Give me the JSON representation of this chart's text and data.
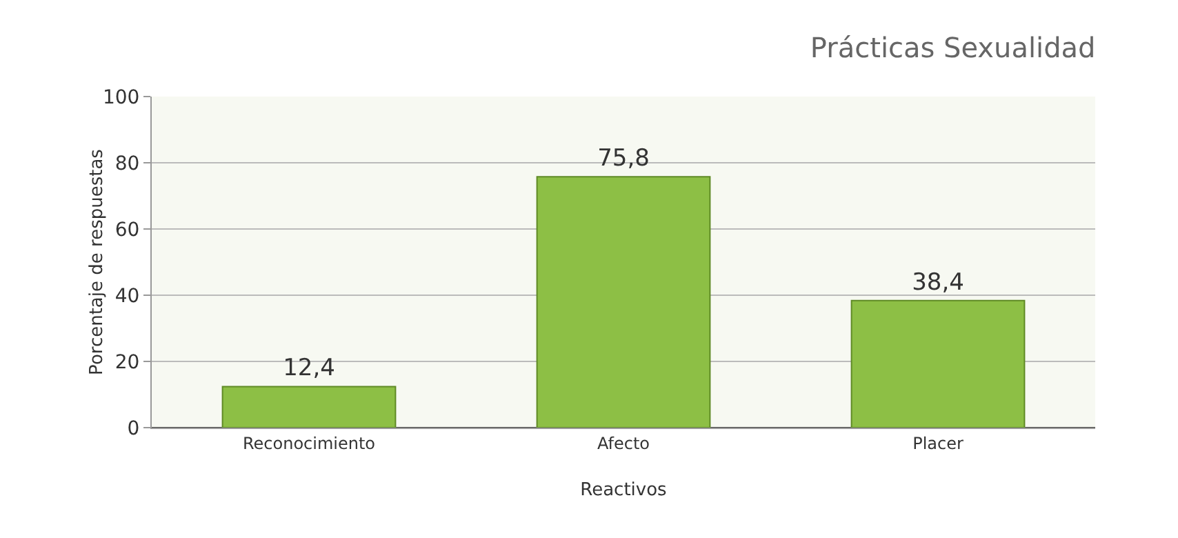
{
  "chart_data": {
    "type": "bar",
    "title": "Prácticas Sexualidad",
    "xlabel": "Reactivos",
    "ylabel": "Porcentaje de respuestas",
    "categories": [
      "Reconocimiento",
      "Afecto",
      "Placer"
    ],
    "values": [
      12.4,
      75.8,
      38.4
    ],
    "value_labels": [
      "12,4",
      "75,8",
      "38,4"
    ],
    "color": "#8dbf45",
    "ylim": [
      0,
      100
    ],
    "yticks": [
      0,
      20,
      40,
      60,
      80,
      100
    ],
    "grid": "y"
  }
}
